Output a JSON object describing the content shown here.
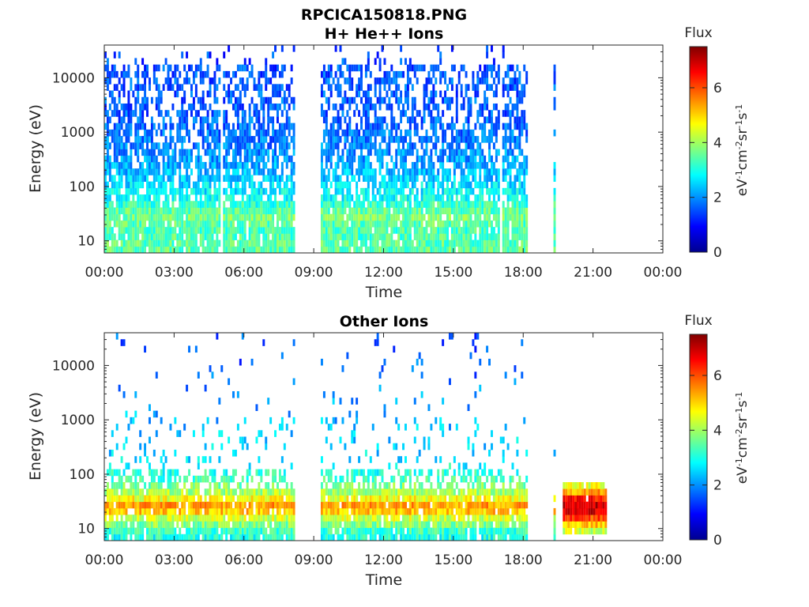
{
  "figure": {
    "title": "RPCICA150818.PNG"
  },
  "panels": [
    {
      "title": "H+ He++ Ions",
      "xlabel": "Time",
      "ylabel": "Energy (eV)",
      "colorbar_title": "Flux",
      "colorbar_label": "eV-1cm-2sr-1s-1"
    },
    {
      "title": "Other Ions",
      "xlabel": "Time",
      "ylabel": "Energy (eV)",
      "colorbar_title": "Flux",
      "colorbar_label": "eV-1cm-2sr-1s-1"
    }
  ],
  "chart_data": [
    {
      "type": "heatmap",
      "title": "H+ He++ Ions",
      "xlabel": "Time",
      "ylabel": "Energy (eV)",
      "x_tick_labels": [
        "00:00",
        "03:00",
        "06:00",
        "09:00",
        "12:00",
        "15:00",
        "18:00",
        "21:00",
        "00:00"
      ],
      "x_ticks_hours": [
        0,
        3,
        6,
        9,
        12,
        15,
        18,
        21,
        24
      ],
      "xlim_hours": [
        0,
        24
      ],
      "y_scale": "log",
      "ylim": [
        6,
        40000
      ],
      "y_tick_labels": [
        "10",
        "100",
        "1000",
        "10000"
      ],
      "y_ticks": [
        10,
        100,
        1000,
        10000
      ],
      "colorbar": {
        "title": "Flux",
        "label": "eV-1cm-2sr-1s-1",
        "range": [
          0,
          7.5
        ],
        "ticks": [
          0,
          2,
          4,
          6
        ],
        "colormap": "jet"
      },
      "data_intervals_hours": [
        [
          0.0,
          5.0
        ],
        [
          5.1,
          8.2
        ],
        [
          9.3,
          17.0
        ],
        [
          17.1,
          18.2
        ],
        [
          19.3,
          19.4
        ]
      ],
      "flux_profile": [
        {
          "energy_eV": 8,
          "flux": 3.5
        },
        {
          "energy_eV": 15,
          "flux": 3.3
        },
        {
          "energy_eV": 30,
          "flux": 3.7
        },
        {
          "energy_eV": 60,
          "flux": 2.9
        },
        {
          "energy_eV": 150,
          "flux": 2.4
        },
        {
          "energy_eV": 500,
          "flux": 1.9
        },
        {
          "energy_eV": 2000,
          "flux": 1.6
        },
        {
          "energy_eV": 8000,
          "flux": 1.6
        },
        {
          "energy_eV": 30000,
          "flux": 1.4
        }
      ]
    },
    {
      "type": "heatmap",
      "title": "Other Ions",
      "xlabel": "Time",
      "ylabel": "Energy (eV)",
      "x_tick_labels": [
        "00:00",
        "03:00",
        "06:00",
        "09:00",
        "12:00",
        "15:00",
        "18:00",
        "21:00",
        "00:00"
      ],
      "x_ticks_hours": [
        0,
        3,
        6,
        9,
        12,
        15,
        18,
        21,
        24
      ],
      "xlim_hours": [
        0,
        24
      ],
      "y_scale": "log",
      "ylim": [
        6,
        40000
      ],
      "y_tick_labels": [
        "10",
        "100",
        "1000",
        "10000"
      ],
      "y_ticks": [
        10,
        100,
        1000,
        10000
      ],
      "colorbar": {
        "title": "Flux",
        "label": "eV-1cm-2sr-1s-1",
        "range": [
          0,
          7.5
        ],
        "ticks": [
          0,
          2,
          4,
          6
        ],
        "colormap": "jet"
      },
      "data_intervals_hours": [
        [
          0.0,
          8.2
        ],
        [
          9.3,
          18.2
        ],
        [
          19.3,
          19.4
        ],
        [
          19.7,
          21.6
        ]
      ],
      "flux_profile": [
        {
          "energy_eV": 8,
          "flux": 3.0
        },
        {
          "energy_eV": 15,
          "flux": 4.2
        },
        {
          "energy_eV": 25,
          "flux": 5.6
        },
        {
          "energy_eV": 40,
          "flux": 4.3
        },
        {
          "energy_eV": 80,
          "flux": 3.3
        },
        {
          "energy_eV": 200,
          "flux": 2.6
        },
        {
          "energy_eV": 1000,
          "flux": 2.3
        },
        {
          "energy_eV": 10000,
          "flux": 1.6
        }
      ],
      "burst": {
        "time_hours": [
          19.7,
          21.6
        ],
        "energy_eV": [
          8,
          80
        ],
        "peak_flux": 7.0
      }
    }
  ]
}
